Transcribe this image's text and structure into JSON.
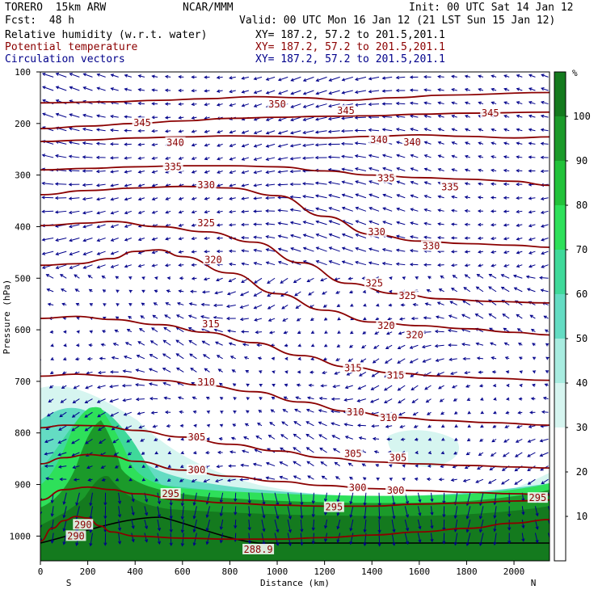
{
  "header": {
    "model": "TORERO  15km ARW",
    "org": "NCAR/MMM",
    "init": "Init: 00 UTC Sat 14 Jan 12",
    "fcst": "Fcst:  48 h",
    "valid": "Valid: 00 UTC Mon 16 Jan 12 (21 LST Sun 15 Jan 12)",
    "fields": [
      {
        "name": "Relative humidity (w.r.t. water)",
        "xy": "XY= 187.2, 57.2 to 201.5,201.1"
      },
      {
        "name": "Potential temperature",
        "xy": "XY= 187.2, 57.2 to 201.5,201.1"
      },
      {
        "name": "Circulation vectors",
        "xy": "XY= 187.2, 57.2 to 201.5,201.1"
      }
    ]
  },
  "colors": {
    "theta": "#8b0000",
    "vectors": "#00008b",
    "rh": [
      "#ffffff",
      "#ffffff",
      "#ffffff",
      "#d6f5f0",
      "#a8ece0",
      "#64dcc3",
      "#3fd99a",
      "#2ee05a",
      "#22c23a",
      "#1b9a2a",
      "#147a1e"
    ]
  },
  "chart_data": {
    "type": "cross-section",
    "xlabel": "Distance (km)",
    "ylabel": "Pressure (hPa)",
    "x_ticks": [
      "0",
      "200",
      "400",
      "600",
      "800",
      "1000",
      "1200",
      "1400",
      "1600",
      "1800",
      "2000"
    ],
    "y_ticks": [
      "100",
      "200",
      "300",
      "400",
      "500",
      "600",
      "700",
      "800",
      "900",
      "1000"
    ],
    "xlim": [
      0,
      2150
    ],
    "ylim": [
      1048,
      100
    ],
    "left_label": "S",
    "right_label": "N",
    "colorbar": {
      "unit": "%",
      "ticks": [
        "10",
        "20",
        "30",
        "40",
        "50",
        "60",
        "70",
        "80",
        "90",
        "100"
      ],
      "range": [
        0,
        110
      ]
    },
    "theta_contours": [
      {
        "label": "350",
        "points": [
          [
            0,
            160
          ],
          [
            300,
            158
          ],
          [
            500,
            155
          ],
          [
            700,
            152
          ],
          [
            900,
            148
          ],
          [
            1100,
            150
          ],
          [
            1300,
            155
          ],
          [
            1500,
            150
          ],
          [
            1700,
            145
          ],
          [
            2150,
            140
          ]
        ]
      },
      {
        "label": "345",
        "points": [
          [
            0,
            210
          ],
          [
            200,
            205
          ],
          [
            400,
            200
          ],
          [
            600,
            195
          ],
          [
            800,
            190
          ],
          [
            1000,
            188
          ],
          [
            1200,
            186
          ],
          [
            1400,
            185
          ],
          [
            1600,
            182
          ],
          [
            1800,
            180
          ],
          [
            2150,
            178
          ]
        ]
      },
      {
        "label": "340",
        "points": [
          [
            0,
            235
          ],
          [
            200,
            232
          ],
          [
            400,
            228
          ],
          [
            600,
            226
          ],
          [
            800,
            224
          ],
          [
            1000,
            225
          ],
          [
            1200,
            228
          ],
          [
            1400,
            225
          ],
          [
            1600,
            222
          ],
          [
            1800,
            225
          ],
          [
            2000,
            228
          ],
          [
            2150,
            226
          ]
        ]
      },
      {
        "label": "335",
        "points": [
          [
            0,
            290
          ],
          [
            200,
            287
          ],
          [
            400,
            284
          ],
          [
            600,
            282
          ],
          [
            800,
            282
          ],
          [
            1000,
            284
          ],
          [
            1200,
            292
          ],
          [
            1400,
            300
          ],
          [
            1600,
            305
          ],
          [
            1800,
            308
          ],
          [
            2000,
            312
          ],
          [
            2150,
            320
          ]
        ]
      },
      {
        "label": "330",
        "points": [
          [
            0,
            338
          ],
          [
            200,
            330
          ],
          [
            400,
            325
          ],
          [
            600,
            322
          ],
          [
            800,
            325
          ],
          [
            1000,
            340
          ],
          [
            1200,
            380
          ],
          [
            1400,
            415
          ],
          [
            1600,
            428
          ],
          [
            1800,
            433
          ],
          [
            2000,
            436
          ],
          [
            2150,
            440
          ]
        ]
      },
      {
        "label": "325",
        "points": [
          [
            0,
            398
          ],
          [
            200,
            393
          ],
          [
            300,
            390
          ],
          [
            500,
            400
          ],
          [
            700,
            410
          ],
          [
            900,
            430
          ],
          [
            1100,
            470
          ],
          [
            1300,
            510
          ],
          [
            1500,
            530
          ],
          [
            1700,
            540
          ],
          [
            1900,
            545
          ],
          [
            2150,
            548
          ]
        ]
      },
      {
        "label": "320",
        "points": [
          [
            0,
            475
          ],
          [
            150,
            472
          ],
          [
            300,
            462
          ],
          [
            400,
            448
          ],
          [
            500,
            445
          ],
          [
            600,
            458
          ],
          [
            800,
            490
          ],
          [
            1000,
            530
          ],
          [
            1200,
            562
          ],
          [
            1400,
            585
          ],
          [
            1600,
            592
          ],
          [
            1800,
            598
          ],
          [
            2000,
            605
          ],
          [
            2150,
            610
          ]
        ]
      },
      {
        "label": "315",
        "points": [
          [
            0,
            578
          ],
          [
            150,
            574
          ],
          [
            300,
            580
          ],
          [
            500,
            590
          ],
          [
            700,
            605
          ],
          [
            900,
            625
          ],
          [
            1100,
            650
          ],
          [
            1300,
            672
          ],
          [
            1500,
            684
          ],
          [
            1700,
            690
          ],
          [
            1900,
            694
          ],
          [
            2150,
            698
          ]
        ]
      },
      {
        "label": "310",
        "points": [
          [
            0,
            690
          ],
          [
            150,
            686
          ],
          [
            300,
            690
          ],
          [
            500,
            698
          ],
          [
            700,
            708
          ],
          [
            900,
            720
          ],
          [
            1100,
            740
          ],
          [
            1300,
            758
          ],
          [
            1500,
            770
          ],
          [
            1700,
            776
          ],
          [
            1900,
            780
          ],
          [
            2150,
            785
          ]
        ]
      },
      {
        "label": "305",
        "points": [
          [
            0,
            790
          ],
          [
            100,
            785
          ],
          [
            250,
            786
          ],
          [
            400,
            795
          ],
          [
            600,
            808
          ],
          [
            800,
            822
          ],
          [
            1000,
            835
          ],
          [
            1200,
            848
          ],
          [
            1400,
            856
          ],
          [
            1600,
            860
          ],
          [
            1800,
            863
          ],
          [
            2000,
            866
          ],
          [
            2150,
            868
          ]
        ]
      },
      {
        "label": "300",
        "points": [
          [
            0,
            860
          ],
          [
            100,
            848
          ],
          [
            200,
            842
          ],
          [
            300,
            845
          ],
          [
            400,
            855
          ],
          [
            600,
            872
          ],
          [
            800,
            884
          ],
          [
            1000,
            894
          ],
          [
            1200,
            902
          ],
          [
            1400,
            908
          ],
          [
            1600,
            912
          ],
          [
            1800,
            915
          ],
          [
            2000,
            918
          ],
          [
            2150,
            920
          ]
        ]
      },
      {
        "label": "295",
        "points": [
          [
            0,
            930
          ],
          [
            100,
            910
          ],
          [
            200,
            905
          ],
          [
            300,
            910
          ],
          [
            400,
            918
          ],
          [
            600,
            930
          ],
          [
            800,
            936
          ],
          [
            1000,
            940
          ],
          [
            1200,
            942
          ],
          [
            1400,
            942
          ],
          [
            1600,
            938
          ],
          [
            1800,
            936
          ],
          [
            2000,
            932
          ],
          [
            2150,
            930
          ]
        ]
      },
      {
        "label": "290",
        "points": [
          [
            0,
            1010
          ],
          [
            50,
            985
          ],
          [
            100,
            970
          ],
          [
            150,
            962
          ],
          [
            200,
            965
          ],
          [
            250,
            980
          ],
          [
            300,
            992
          ],
          [
            400,
            1000
          ],
          [
            600,
            1004
          ],
          [
            800,
            1006
          ],
          [
            1000,
            1006
          ],
          [
            1200,
            1003
          ],
          [
            1400,
            998
          ],
          [
            1600,
            992
          ],
          [
            1800,
            985
          ],
          [
            2000,
            975
          ],
          [
            2150,
            968
          ]
        ]
      },
      {
        "label": "288.9",
        "points": []
      }
    ],
    "theta_labels": [
      {
        "text": "350",
        "x": 1000,
        "p": 163
      },
      {
        "text": "345",
        "x": 430,
        "p": 199
      },
      {
        "text": "345",
        "x": 1290,
        "p": 175
      },
      {
        "text": "345",
        "x": 1900,
        "p": 180
      },
      {
        "text": "340",
        "x": 570,
        "p": 237
      },
      {
        "text": "340",
        "x": 1430,
        "p": 232
      },
      {
        "text": "340",
        "x": 1570,
        "p": 236
      },
      {
        "text": "335",
        "x": 560,
        "p": 284
      },
      {
        "text": "335",
        "x": 1460,
        "p": 306
      },
      {
        "text": "335",
        "x": 1730,
        "p": 323
      },
      {
        "text": "330",
        "x": 700,
        "p": 319
      },
      {
        "text": "330",
        "x": 1420,
        "p": 410
      },
      {
        "text": "330",
        "x": 1650,
        "p": 438
      },
      {
        "text": "325",
        "x": 700,
        "p": 393
      },
      {
        "text": "325",
        "x": 1410,
        "p": 510
      },
      {
        "text": "325",
        "x": 1550,
        "p": 534
      },
      {
        "text": "320",
        "x": 730,
        "p": 464
      },
      {
        "text": "320",
        "x": 1460,
        "p": 592
      },
      {
        "text": "320",
        "x": 1580,
        "p": 610
      },
      {
        "text": "315",
        "x": 720,
        "p": 589
      },
      {
        "text": "315",
        "x": 1320,
        "p": 674
      },
      {
        "text": "315",
        "x": 1500,
        "p": 688
      },
      {
        "text": "310",
        "x": 700,
        "p": 702
      },
      {
        "text": "310",
        "x": 1330,
        "p": 760
      },
      {
        "text": "310",
        "x": 1470,
        "p": 771
      },
      {
        "text": "305",
        "x": 660,
        "p": 808
      },
      {
        "text": "305",
        "x": 1320,
        "p": 840
      },
      {
        "text": "305",
        "x": 1510,
        "p": 848
      },
      {
        "text": "300",
        "x": 660,
        "p": 872
      },
      {
        "text": "300",
        "x": 1340,
        "p": 906
      },
      {
        "text": "300",
        "x": 1500,
        "p": 912
      },
      {
        "text": "295",
        "x": 550,
        "p": 918
      },
      {
        "text": "295",
        "x": 1240,
        "p": 944
      },
      {
        "text": "295",
        "x": 2100,
        "p": 926
      },
      {
        "text": "290",
        "x": 180,
        "p": 978
      },
      {
        "text": "290",
        "x": 150,
        "p": 1000
      },
      {
        "text": "288.9",
        "x": 920,
        "p": 1026
      }
    ]
  }
}
